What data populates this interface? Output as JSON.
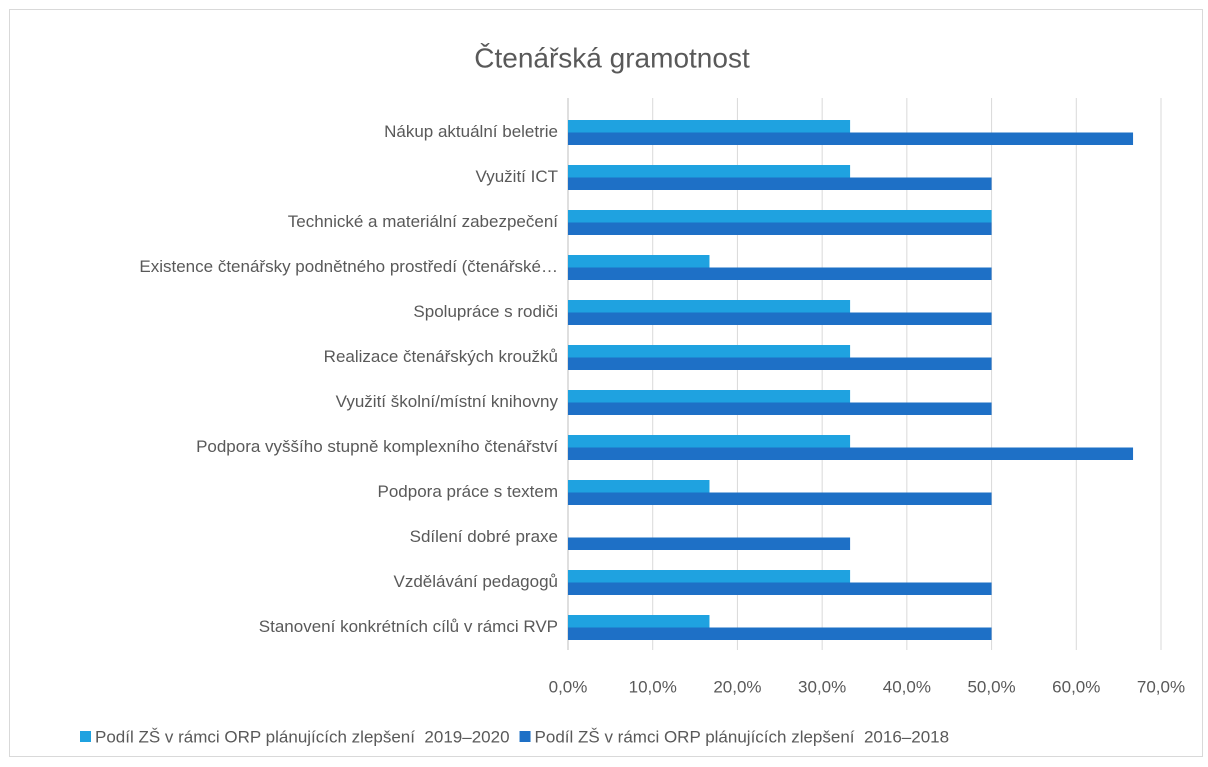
{
  "chart_data": {
    "type": "barh",
    "title": "Čtenářská gramotnost",
    "categories": [
      "Nákup aktuální beletrie",
      "Využití ICT",
      "Technické a materiální zabezpečení",
      "Existence čtenářsky podnětného prostředí (čtenářské…",
      "Spolupráce s rodiči",
      "Realizace čtenářských kroužků",
      "Využití školní/místní knihovny",
      "Podpora vyššího stupně komplexního čtenářství",
      "Podpora práce s textem",
      "Sdílení dobré praxe",
      "Vzdělávání pedagogů",
      "Stanovení konkrétních cílů v rámci RVP"
    ],
    "series": [
      {
        "name": "Podíl ZŠ v rámci ORP plánujících zlepšení  2019–2020",
        "color": "#1fa2e0",
        "values": [
          33.3,
          33.3,
          50,
          16.7,
          33.3,
          33.3,
          33.3,
          33.3,
          16.7,
          0,
          33.3,
          16.7
        ]
      },
      {
        "name": "Podíl ZŠ v rámci ORP plánujících zlepšení  2016–2018",
        "color": "#1e70c6",
        "values": [
          66.7,
          50,
          50,
          50,
          50,
          50,
          50,
          66.7,
          50,
          33.3,
          50,
          50
        ]
      }
    ],
    "xlim": [
      0,
      70
    ],
    "xticks": [
      {
        "value": 0,
        "label": "0,0%"
      },
      {
        "value": 10,
        "label": "10,0%"
      },
      {
        "value": 20,
        "label": "20,0%"
      },
      {
        "value": 30,
        "label": "30,0%"
      },
      {
        "value": 40,
        "label": "40,0%"
      },
      {
        "value": 50,
        "label": "50,0%"
      },
      {
        "value": 60,
        "label": "60,0%"
      },
      {
        "value": 70,
        "label": "70,0%"
      }
    ],
    "grid": true,
    "legend": "bottom"
  }
}
